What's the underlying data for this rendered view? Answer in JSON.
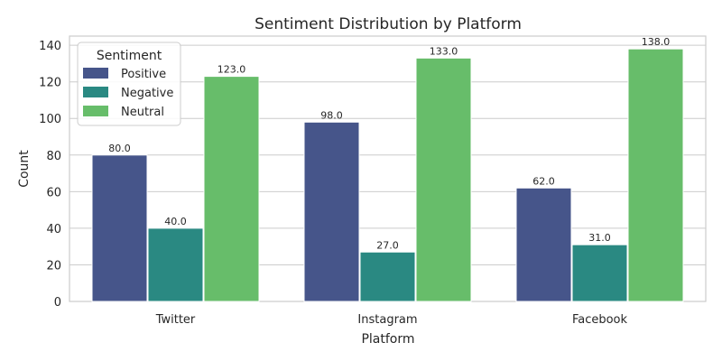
{
  "chart_data": {
    "type": "bar",
    "title": "Sentiment Distribution by Platform",
    "xlabel": "Platform",
    "ylabel": "Count",
    "categories": [
      "Twitter",
      "Instagram",
      "Facebook"
    ],
    "series": [
      {
        "name": "Positive",
        "color": "#46558a",
        "values": [
          80,
          98,
          62
        ]
      },
      {
        "name": "Negative",
        "color": "#2a8982",
        "values": [
          40,
          27,
          31
        ]
      },
      {
        "name": "Neutral",
        "color": "#67bd6a",
        "values": [
          123,
          133,
          138
        ]
      }
    ],
    "data_labels": [
      [
        "80.0",
        "98.0",
        "62.0"
      ],
      [
        "40.0",
        "27.0",
        "31.0"
      ],
      [
        "123.0",
        "133.0",
        "138.0"
      ]
    ],
    "ylim": [
      0,
      145
    ],
    "yticks": [
      0,
      20,
      40,
      60,
      80,
      100,
      120,
      140
    ],
    "grid": true,
    "legend": {
      "title": "Sentiment",
      "position": "top-left"
    }
  }
}
